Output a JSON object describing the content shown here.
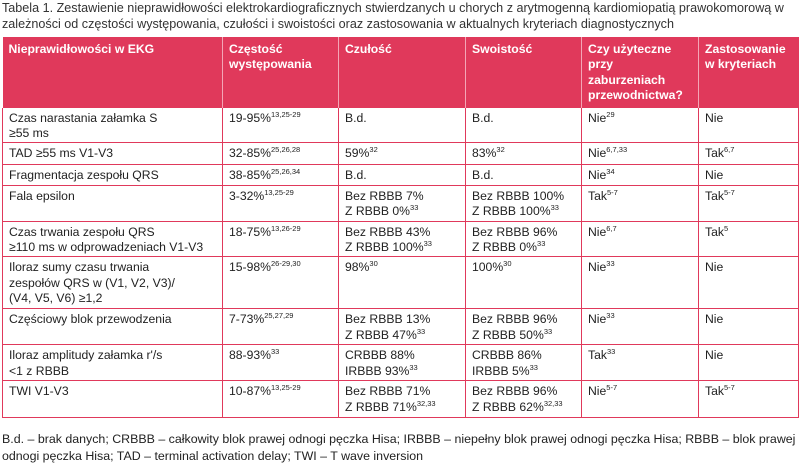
{
  "caption": "Tabela 1. Zestawienie nieprawidłowości elektrokardiograficznych stwierdzanych u chorych z arytmogenną kardiomiopatią prawokomorową w zależności od częstości występowania, czułości i swoistości oraz zastosowania w aktualnych kryteriach diagnostycznych",
  "table": {
    "headers": [
      "Nieprawidłowości w EKG",
      "Częstość występowania",
      "Czułość",
      "Swoistość",
      "Czy użyteczne przy zaburzeniach przewodnictwa?",
      "Zastosowanie w kryteriach"
    ],
    "rows": [
      {
        "cells": [
          [
            [
              "Czas narastania załamka S",
              ""
            ],
            [
              "≥55 ms",
              ""
            ]
          ],
          [
            [
              "19-95%",
              "13,25-29"
            ]
          ],
          [
            [
              "B.d.",
              ""
            ]
          ],
          [
            [
              "B.d.",
              ""
            ]
          ],
          [
            [
              "Nie",
              "29"
            ]
          ],
          [
            [
              "Nie",
              ""
            ]
          ]
        ]
      },
      {
        "cells": [
          [
            [
              "TAD ≥55 ms V1-V3",
              ""
            ]
          ],
          [
            [
              "32-85%",
              "25,26,28"
            ]
          ],
          [
            [
              "59%",
              "32"
            ]
          ],
          [
            [
              "83%",
              "32"
            ]
          ],
          [
            [
              "Nie",
              "6,7,33"
            ]
          ],
          [
            [
              "Tak",
              "6,7"
            ]
          ]
        ]
      },
      {
        "cells": [
          [
            [
              "Fragmentacja zespołu QRS",
              ""
            ]
          ],
          [
            [
              "38-85%",
              "25,26,34"
            ]
          ],
          [
            [
              "B.d.",
              ""
            ]
          ],
          [
            [
              "B.d.",
              ""
            ]
          ],
          [
            [
              "Nie",
              "34"
            ]
          ],
          [
            [
              "Nie",
              ""
            ]
          ]
        ]
      },
      {
        "cells": [
          [
            [
              "Fala epsilon",
              ""
            ]
          ],
          [
            [
              "3-32%",
              "13,25-29"
            ]
          ],
          [
            [
              "Bez RBBB 7%",
              ""
            ],
            [
              "Z RBBB 0%",
              "33"
            ]
          ],
          [
            [
              "Bez RBBB 100%",
              ""
            ],
            [
              "Z RBBB 100%",
              "33"
            ]
          ],
          [
            [
              "Tak",
              "5-7"
            ]
          ],
          [
            [
              "Tak",
              "5-7"
            ]
          ]
        ]
      },
      {
        "cells": [
          [
            [
              "Czas trwania zespołu QRS",
              ""
            ],
            [
              "≥110 ms w odprowadzeniach V1-V3",
              ""
            ]
          ],
          [
            [
              "18-75%",
              "13,26-29"
            ]
          ],
          [
            [
              "Bez RBBB 43%",
              ""
            ],
            [
              "Z RBBB 100%",
              "33"
            ]
          ],
          [
            [
              "Bez RBBB 96%",
              ""
            ],
            [
              "Z RBBB 0%",
              "33"
            ]
          ],
          [
            [
              "Nie",
              "6,7"
            ]
          ],
          [
            [
              "Tak",
              "5"
            ]
          ]
        ]
      },
      {
        "cells": [
          [
            [
              "Iloraz sumy czasu trwania",
              ""
            ],
            [
              "zespołów QRS w (V1, V2, V3)/",
              ""
            ],
            [
              "(V4, V5, V6) ≥1,2",
              ""
            ]
          ],
          [
            [
              "15-98%",
              "26-29,30"
            ]
          ],
          [
            [
              "98%",
              "30"
            ]
          ],
          [
            [
              "100%",
              "30"
            ]
          ],
          [
            [
              "Nie",
              "33"
            ]
          ],
          [
            [
              "Nie",
              ""
            ]
          ]
        ]
      },
      {
        "cells": [
          [
            [
              "Częściowy blok przewodzenia",
              ""
            ]
          ],
          [
            [
              "7-73%",
              "25,27,29"
            ]
          ],
          [
            [
              "Bez RBBB 13%",
              ""
            ],
            [
              "Z RBBB 47%",
              "33"
            ]
          ],
          [
            [
              "Bez RBBB 96%",
              ""
            ],
            [
              "Z RBBB 50%",
              "33"
            ]
          ],
          [
            [
              "Nie",
              "33"
            ]
          ],
          [
            [
              "Nie",
              ""
            ]
          ]
        ]
      },
      {
        "cells": [
          [
            [
              "Iloraz amplitudy załamka r'/s",
              ""
            ],
            [
              "<1 z RBBB",
              ""
            ]
          ],
          [
            [
              "88-93%",
              "33"
            ]
          ],
          [
            [
              "CRBBB 88%",
              ""
            ],
            [
              "IRBBB 93%",
              "33"
            ]
          ],
          [
            [
              "CRBBB 86%",
              ""
            ],
            [
              "IRBBB 5%",
              "33"
            ]
          ],
          [
            [
              "Tak",
              "33"
            ]
          ],
          [
            [
              "Nie",
              ""
            ]
          ]
        ]
      },
      {
        "cells": [
          [
            [
              "TWI V1-V3",
              ""
            ]
          ],
          [
            [
              "10-87%",
              "13,25-29"
            ]
          ],
          [
            [
              "Bez RBBB 71%",
              ""
            ],
            [
              "Z RBBB 71%",
              "32,33"
            ]
          ],
          [
            [
              "Bez RBBB 96%",
              ""
            ],
            [
              "Z RBBB 62%",
              "32,33"
            ]
          ],
          [
            [
              "Nie",
              "5-7"
            ]
          ],
          [
            [
              "Tak",
              "5-7"
            ]
          ]
        ]
      }
    ]
  },
  "footnote": "B.d. – brak danych; CRBBB – całkowity blok prawej odnogi pęczka Hisa; IRBBB – niepełny blok prawej odnogi pęczka Hisa; RBBB – blok prawej odnogi pęczka Hisa; TAD – terminal activation delay; TWI – T wave inversion",
  "colors": {
    "header_background": "#e0395b",
    "header_text": "#ffffff",
    "grid_lines": "#e0395b"
  }
}
